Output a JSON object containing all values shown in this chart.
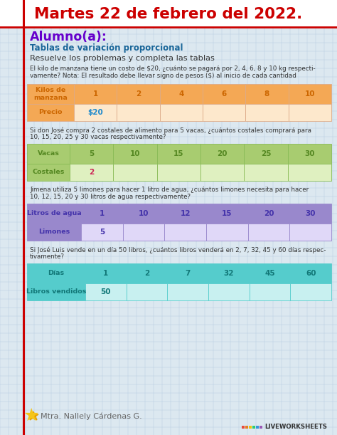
{
  "title": "Martes 22 de febrero del 2022.",
  "title_color": "#cc0000",
  "subtitle": "Alumno(a):",
  "subtitle_color": "#6600cc",
  "section_title": "Tablas de variación proporcional",
  "section_title_color": "#1a6699",
  "instruction": "Resuelve los problemas y completa las tablas",
  "bg_color": "#dce8f0",
  "grid_color": "#b8cde0",
  "left_line_color": "#cc0000",
  "top_line_color": "#cc0000",
  "title_bg": "#ffffff",
  "table1": {
    "problem1": "El kilo de manzana tiene un costo de $20, ¿cuánto se pagará por 2, 4, 6, 8 y 10 kg respecti-",
    "problem2": "vamente? Nota: El resultado debe llevar signo de pesos ($) al inicio de cada cantidad",
    "header_color": "#f4a855",
    "header_text_color": "#cc6600",
    "data_color": "#fde8cc",
    "row1_label": "Kilos de\nmanzana",
    "row2_label": "Precio",
    "row1_values": [
      "1",
      "2",
      "4",
      "6",
      "8",
      "10"
    ],
    "row2_values": [
      "$20",
      "",
      "",
      "",
      "",
      ""
    ],
    "known_color": "#1a88cc",
    "border_color": "#ddaa88"
  },
  "table2": {
    "problem1": "Si don José compra 2 costales de alimento para 5 vacas, ¿cuántos costales comprará para",
    "problem2": "10, 15, 20, 25 y 30 vacas respectivamente?",
    "header_color": "#a8cc70",
    "header_text_color": "#558822",
    "data_color": "#dff0c0",
    "row1_label": "Vacas",
    "row2_label": "Costales",
    "row1_values": [
      "5",
      "10",
      "15",
      "20",
      "25",
      "30"
    ],
    "row2_values": [
      "2",
      "",
      "",
      "",
      "",
      ""
    ],
    "known_color": "#cc2255",
    "border_color": "#88bb55"
  },
  "table3": {
    "problem1": "Jimena utiliza 5 limones para hacer 1 litro de agua, ¿cuántos limones necesita para hacer",
    "problem2": "10, 12, 15, 20 y 30 litros de agua respectivamente?",
    "header_color": "#9988cc",
    "header_text_color": "#4433aa",
    "data_color": "#e0d8f8",
    "row1_label": "Litros de agua",
    "row2_label": "Limones",
    "row1_values": [
      "1",
      "10",
      "12",
      "15",
      "20",
      "30"
    ],
    "row2_values": [
      "5",
      "",
      "",
      "",
      "",
      ""
    ],
    "known_color": "#4433aa",
    "border_color": "#9988cc"
  },
  "table4": {
    "problem1": "Si José Luis vende en un día 50 libros, ¿cuántos libros venderá en 2, 7, 32, 45 y 60 días respec-",
    "problem2": "tivamente?",
    "header_color": "#55cccc",
    "header_text_color": "#117777",
    "data_color": "#c8f0f0",
    "row1_label": "Días",
    "row2_label": "Libros vendidos",
    "row1_values": [
      "1",
      "2",
      "7",
      "32",
      "45",
      "60"
    ],
    "row2_values": [
      "50",
      "",
      "",
      "",
      "",
      ""
    ],
    "known_color": "#117777",
    "border_color": "#55cccc"
  },
  "footer_text": "Mtra. Nallely Cárdenas G.",
  "liveworksheets_text": "LIVEWORKSHEETS"
}
